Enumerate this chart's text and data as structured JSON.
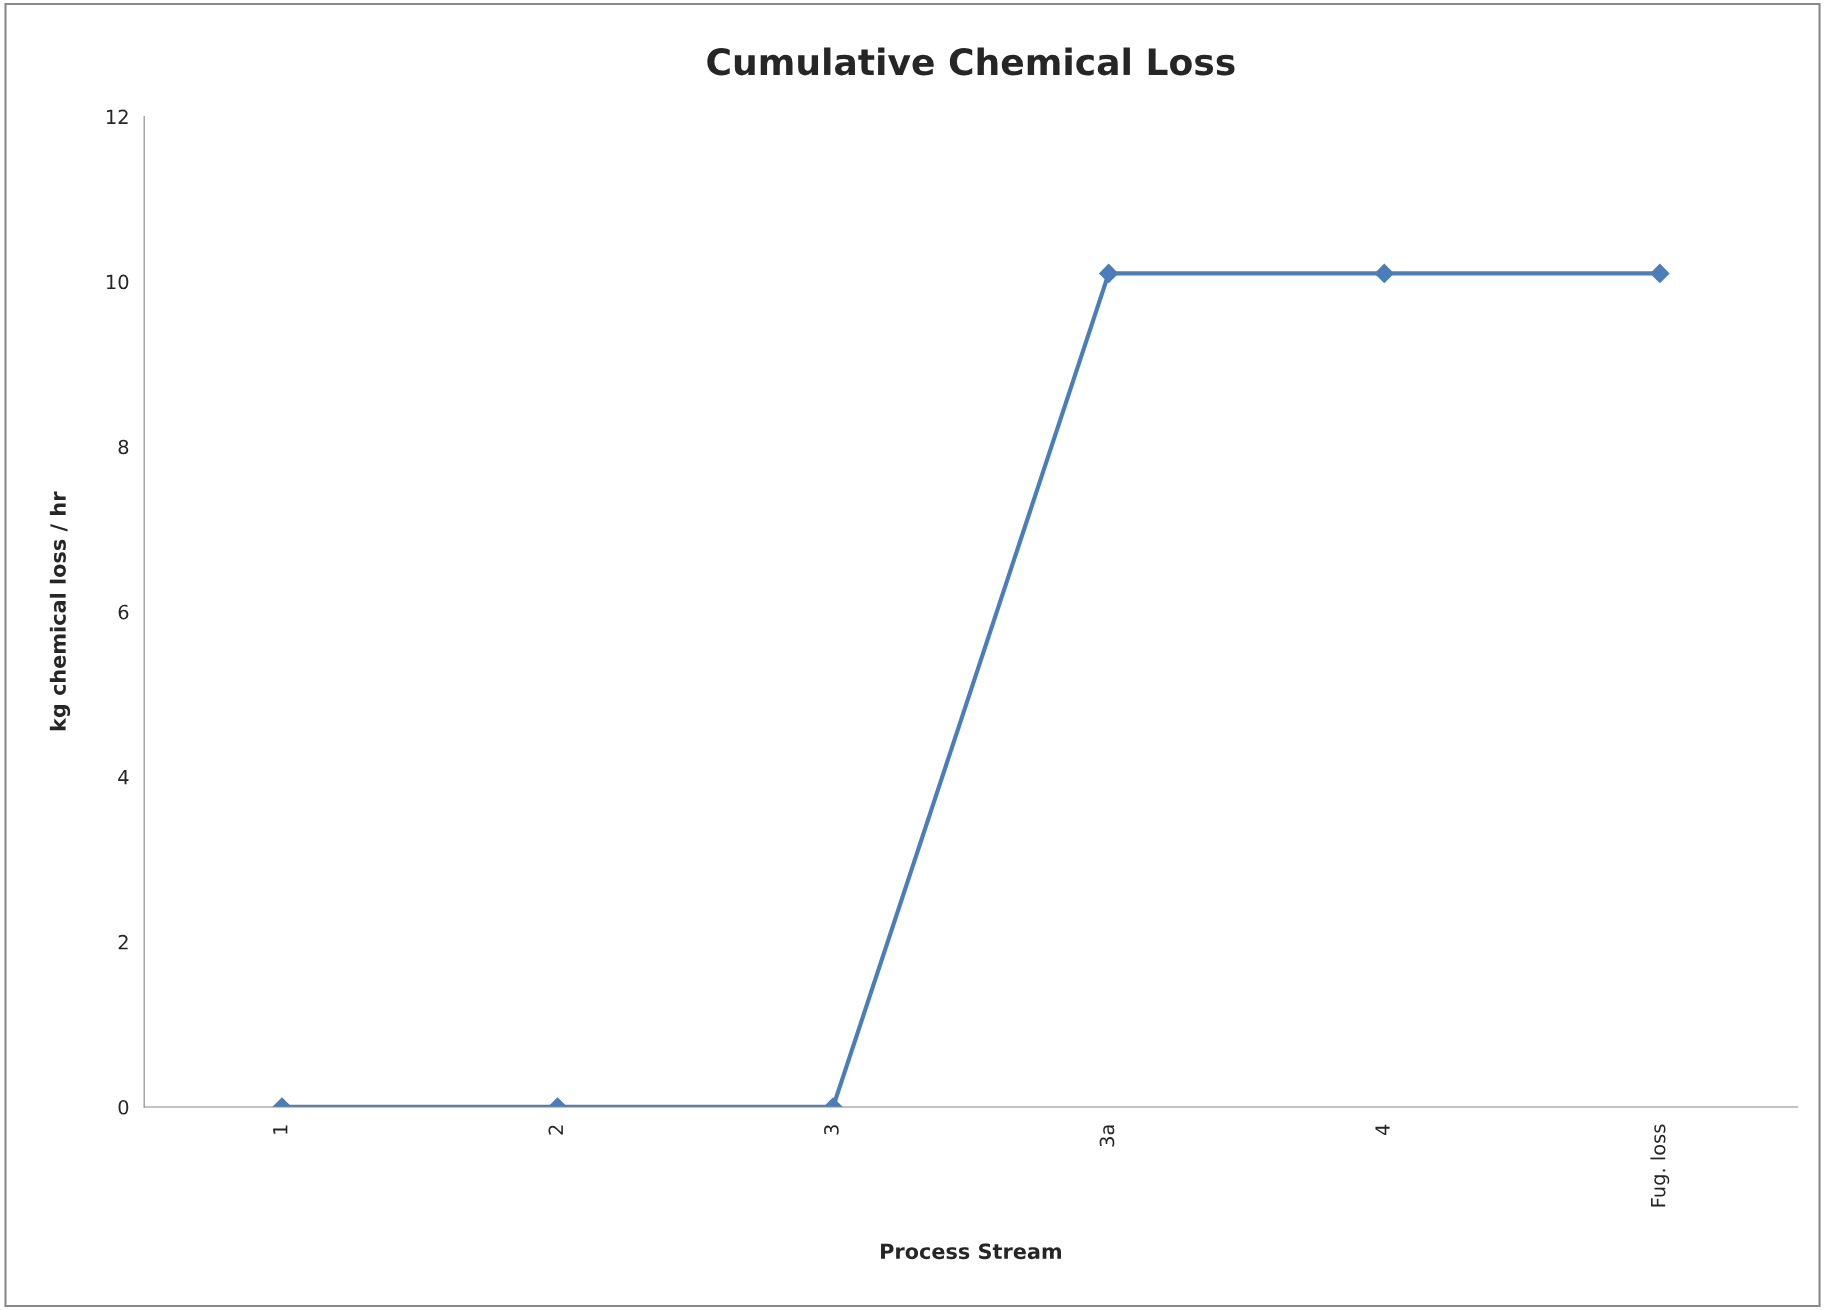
{
  "chart_data": {
    "type": "line",
    "title": "Cumulative Chemical Loss",
    "xlabel": "Process Stream",
    "ylabel": "kg chemical loss / hr",
    "categories": [
      "1",
      "2",
      "3",
      "3a",
      "4",
      "Fug. loss"
    ],
    "series": [
      {
        "color": "#4a7ebb",
        "values": [
          0,
          0,
          0,
          10.1,
          10.1,
          10.1
        ]
      }
    ],
    "ylim": [
      0,
      12
    ],
    "yticks": [
      0,
      2,
      4,
      6,
      8,
      10,
      12
    ],
    "grid": false,
    "legend": false,
    "marker": "diamond",
    "line_style": "solid"
  }
}
